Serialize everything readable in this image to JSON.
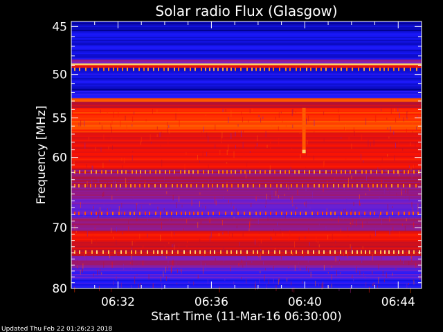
{
  "chart_data": {
    "type": "heatmap",
    "title": "Solar radio Flux (Glasgow)",
    "xlabel": "Start Time (11-Mar-16 06:30:00)",
    "ylabel": "Frequency [MHz]",
    "x_range_minutes": [
      0,
      15
    ],
    "x_ticks": [
      {
        "minute": 2,
        "label": "06:32"
      },
      {
        "minute": 6,
        "label": "06:36"
      },
      {
        "minute": 10,
        "label": "06:40"
      },
      {
        "minute": 14,
        "label": "06:44"
      }
    ],
    "y_scale": "log",
    "y_range": [
      80,
      44.5
    ],
    "y_ticks": [
      45,
      50,
      55,
      60,
      70,
      80
    ],
    "y_tick_labels": [
      "45",
      "50",
      "55",
      "60",
      "70",
      "80"
    ],
    "colormap": [
      "#00008c",
      "#1a1aff",
      "#7a22c8",
      "#b8102a",
      "#ff1400",
      "#ff7a00",
      "#ffe080"
    ],
    "bands": [
      {
        "f0": 44.5,
        "f1": 45.6,
        "level": 0.05
      },
      {
        "f0": 45.6,
        "f1": 48.4,
        "level": 0.12
      },
      {
        "f0": 48.4,
        "f1": 48.8,
        "level": 0.35
      },
      {
        "f0": 48.8,
        "f1": 49.0,
        "level": 0.98
      },
      {
        "f0": 49.0,
        "f1": 49.3,
        "level": 0.6
      },
      {
        "f0": 49.3,
        "f1": 51.3,
        "level": 0.12
      },
      {
        "f0": 51.3,
        "f1": 51.8,
        "level": 0.05
      },
      {
        "f0": 51.8,
        "f1": 52.7,
        "level": 0.18
      },
      {
        "f0": 52.7,
        "f1": 53.1,
        "level": 0.8
      },
      {
        "f0": 53.1,
        "f1": 53.8,
        "level": 0.5
      },
      {
        "f0": 53.8,
        "f1": 56.8,
        "level": 0.74
      },
      {
        "f0": 56.8,
        "f1": 58.5,
        "level": 0.6
      },
      {
        "f0": 58.5,
        "f1": 61.5,
        "level": 0.62
      },
      {
        "f0": 61.5,
        "f1": 64.5,
        "level": 0.45
      },
      {
        "f0": 64.5,
        "f1": 66.5,
        "level": 0.36
      },
      {
        "f0": 66.5,
        "f1": 68.5,
        "level": 0.28
      },
      {
        "f0": 68.5,
        "f1": 70.5,
        "level": 0.42
      },
      {
        "f0": 70.5,
        "f1": 72.0,
        "level": 0.62
      },
      {
        "f0": 72.0,
        "f1": 74.5,
        "level": 0.56
      },
      {
        "f0": 74.5,
        "f1": 76.5,
        "level": 0.4
      },
      {
        "f0": 76.5,
        "f1": 78.5,
        "level": 0.25
      },
      {
        "f0": 78.5,
        "f1": 80.0,
        "level": 0.16
      }
    ],
    "spike_rows": [
      {
        "freq": 49.4,
        "level": 0.82
      },
      {
        "freq": 61.9,
        "level": 0.8
      },
      {
        "freq": 63.8,
        "level": 0.78
      },
      {
        "freq": 67.8,
        "level": 0.72
      },
      {
        "freq": 73.8,
        "level": 0.9
      }
    ],
    "events": [
      {
        "minute": 9.95,
        "f_start": 53.8,
        "f_end": 59.5,
        "level": 0.78
      },
      {
        "minute": 9.95,
        "f_start": 59.0,
        "f_end": 59.4,
        "level": 0.97
      }
    ]
  },
  "footer": {
    "updated": "Updated Thu Feb 22 01:26:23 2018"
  }
}
